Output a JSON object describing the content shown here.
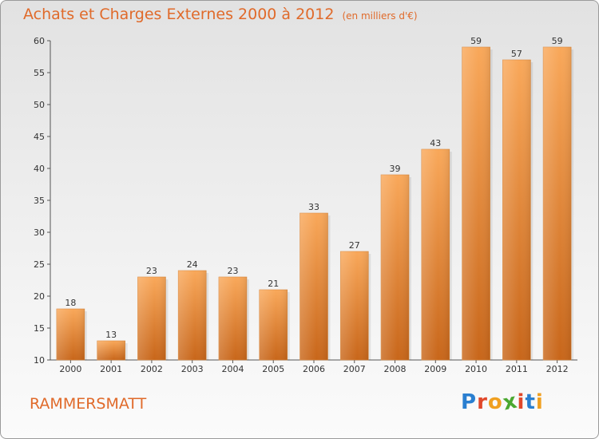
{
  "header": {
    "title": "Achats et Charges Externes 2000 à 2012",
    "subtitle": "(en milliers d'€)"
  },
  "footer": {
    "commune": "RAMMERSMATT",
    "logo": {
      "text": "Proxiti",
      "colors": [
        "#2a7fd0",
        "#e0482a",
        "#f0a020",
        "#4aa830",
        "#e0482a",
        "#2a7fd0",
        "#f0a020"
      ]
    }
  },
  "colors": {
    "bar_top": "#f9a85a",
    "bar_bottom": "#c8661a",
    "accent": "#e06a2a"
  },
  "chart_data": {
    "type": "bar",
    "title": "Achats et Charges Externes 2000 à 2012",
    "subtitle": "(en milliers d'€)",
    "categories": [
      "2000",
      "2001",
      "2002",
      "2003",
      "2004",
      "2005",
      "2006",
      "2007",
      "2008",
      "2009",
      "2010",
      "2011",
      "2012"
    ],
    "values": [
      18,
      13,
      23,
      24,
      23,
      21,
      33,
      27,
      39,
      43,
      59,
      57,
      59
    ],
    "ylim": [
      10,
      60
    ],
    "yticks": [
      10,
      15,
      20,
      25,
      30,
      35,
      40,
      45,
      50,
      55,
      60
    ],
    "grid": false,
    "legend": "none"
  }
}
